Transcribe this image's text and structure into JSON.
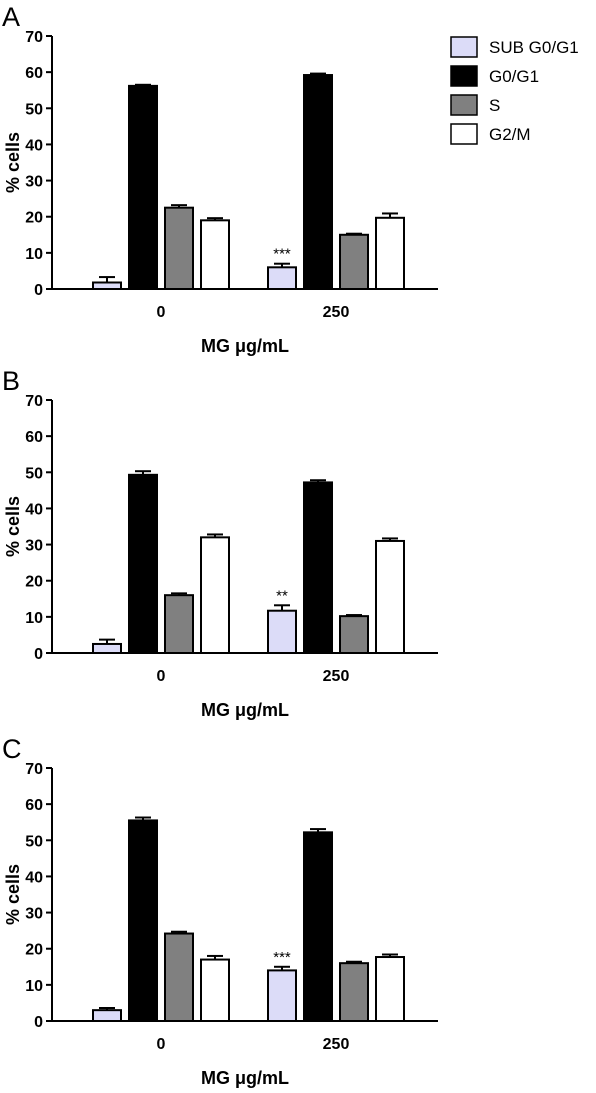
{
  "legend": {
    "placement": "top-right",
    "entries": [
      {
        "label": "SUB G0/G1",
        "color": "#dcdcf8"
      },
      {
        "label": "G0/G1",
        "color": "#000000"
      },
      {
        "label": "S",
        "color": "#808080"
      },
      {
        "label": "G2/M",
        "color": "#ffffff"
      }
    ]
  },
  "chart_data": [
    {
      "type": "bar",
      "panel_label": "A",
      "categories": [
        "0",
        "250"
      ],
      "series": [
        {
          "name": "SUB G0/G1",
          "values": [
            1.8,
            6.0
          ],
          "errors": [
            1.5,
            1.0
          ]
        },
        {
          "name": "G0/G1",
          "values": [
            56.2,
            59.2
          ],
          "errors": [
            0.3,
            0.4
          ]
        },
        {
          "name": "S",
          "values": [
            22.5,
            15.0
          ],
          "errors": [
            0.7,
            0.3
          ]
        },
        {
          "name": "G2/M",
          "values": [
            19.0,
            19.7
          ],
          "errors": [
            0.6,
            1.2
          ]
        }
      ],
      "annotations": [
        {
          "category": "250",
          "series": "SUB G0/G1",
          "text": "***"
        }
      ],
      "xlabel": "MG μg/mL",
      "ylabel": "% cells",
      "ylim": [
        0,
        70
      ],
      "yticks": [
        "0",
        "10",
        "20",
        "30",
        "40",
        "50",
        "60",
        "70"
      ],
      "grid": false
    },
    {
      "type": "bar",
      "panel_label": "B",
      "categories": [
        "0",
        "250"
      ],
      "series": [
        {
          "name": "SUB G0/G1",
          "values": [
            2.5,
            11.7
          ],
          "errors": [
            1.2,
            1.5
          ]
        },
        {
          "name": "G0/G1",
          "values": [
            49.3,
            47.2
          ],
          "errors": [
            1.0,
            0.6
          ]
        },
        {
          "name": "S",
          "values": [
            16.0,
            10.2
          ],
          "errors": [
            0.5,
            0.3
          ]
        },
        {
          "name": "G2/M",
          "values": [
            32.0,
            31.0
          ],
          "errors": [
            0.8,
            0.7
          ]
        }
      ],
      "annotations": [
        {
          "category": "250",
          "series": "SUB G0/G1",
          "text": "**"
        }
      ],
      "xlabel": "MG μg/mL",
      "ylabel": "% cells",
      "ylim": [
        0,
        70
      ],
      "yticks": [
        "0",
        "10",
        "20",
        "30",
        "40",
        "50",
        "60",
        "70"
      ],
      "grid": false
    },
    {
      "type": "bar",
      "panel_label": "C",
      "categories": [
        "0",
        "250"
      ],
      "series": [
        {
          "name": "SUB G0/G1",
          "values": [
            3.0,
            14.0
          ],
          "errors": [
            0.6,
            1.0
          ]
        },
        {
          "name": "G0/G1",
          "values": [
            55.5,
            52.2
          ],
          "errors": [
            0.8,
            0.9
          ]
        },
        {
          "name": "S",
          "values": [
            24.2,
            16.0
          ],
          "errors": [
            0.5,
            0.4
          ]
        },
        {
          "name": "G2/M",
          "values": [
            17.0,
            17.7
          ],
          "errors": [
            1.0,
            0.7
          ]
        }
      ],
      "annotations": [
        {
          "category": "250",
          "series": "SUB G0/G1",
          "text": "***"
        }
      ],
      "xlabel": "MG μg/mL",
      "ylabel": "% cells",
      "ylim": [
        0,
        70
      ],
      "yticks": [
        "0",
        "10",
        "20",
        "30",
        "40",
        "50",
        "60",
        "70"
      ],
      "grid": false
    }
  ]
}
